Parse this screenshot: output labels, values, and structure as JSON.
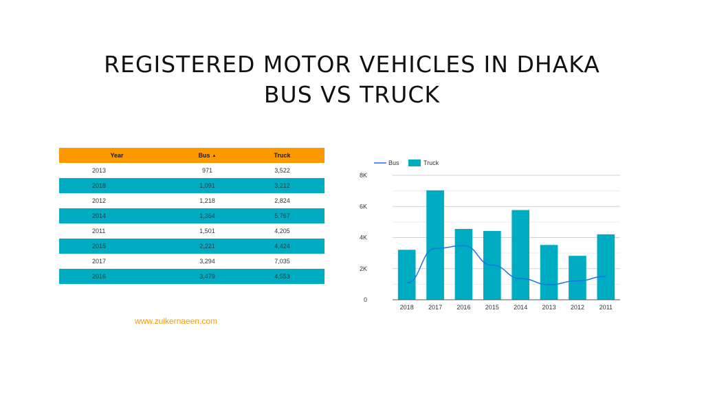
{
  "title": {
    "line1": "REGISTERED MOTOR VEHICLES IN DHAKA",
    "line2": "BUS VS TRUCK"
  },
  "table": {
    "headers": [
      "Year",
      "Bus",
      "Truck"
    ],
    "sort_indicator": "▲",
    "rows": [
      [
        "2013",
        "971",
        "3,522"
      ],
      [
        "2018",
        "1,091",
        "3,212"
      ],
      [
        "2012",
        "1,218",
        "2,824"
      ],
      [
        "2014",
        "1,364",
        "5,767"
      ],
      [
        "2011",
        "1,501",
        "4,205"
      ],
      [
        "2015",
        "2,221",
        "4,424"
      ],
      [
        "2017",
        "3,294",
        "7,035"
      ],
      [
        "2016",
        "3,479",
        "4,553"
      ]
    ]
  },
  "chart_data": {
    "type": "bar",
    "categories": [
      "2018",
      "2017",
      "2016",
      "2015",
      "2014",
      "2013",
      "2012",
      "2011"
    ],
    "series": [
      {
        "name": "Truck",
        "type": "bar",
        "color": "#00acc1",
        "values": [
          3212,
          7035,
          4553,
          4424,
          5767,
          3522,
          2824,
          4205
        ]
      },
      {
        "name": "Bus",
        "type": "line",
        "color": "#1a73e8",
        "values": [
          1091,
          3294,
          3479,
          2221,
          1364,
          971,
          1218,
          1501
        ]
      }
    ],
    "legend_order": [
      "Bus",
      "Truck"
    ],
    "ylim": [
      0,
      8000
    ],
    "y_ticks": [
      0,
      2000,
      4000,
      6000,
      8000
    ],
    "y_tick_labels": [
      "0",
      "2K",
      "4K",
      "6K",
      "8K"
    ],
    "grid": true,
    "legend": "top-left"
  },
  "colors": {
    "header_orange": "#ff9900",
    "row_teal": "#00acc1",
    "bus_line": "#1a73e8",
    "truck_bar": "#00acc1",
    "link": "#ff9900"
  },
  "footer": {
    "link_text": "www.zulkernaeen.com"
  }
}
